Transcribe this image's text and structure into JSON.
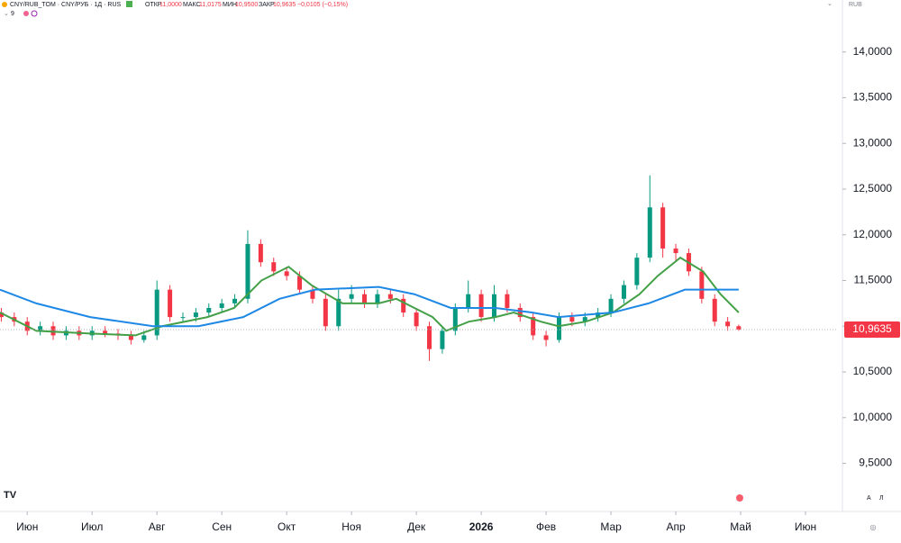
{
  "header": {
    "symbol": "CNY/RUB_TOM · CNY/РУБ · 1Д · RUS",
    "open_label": "ОТКР",
    "open": "11,0000",
    "high_label": "МАКС",
    "high": "11,0175",
    "low_label": "МИН",
    "low": "10,9500",
    "close_label": "ЗАКР",
    "close": "10,9635",
    "change": "−0,0105 (−0,15%)",
    "indicator": "9",
    "currency": "RUB"
  },
  "footer": {
    "auto": "А",
    "log": "Л"
  },
  "chart_data": {
    "type": "candlestick",
    "x": [
      -0.4,
      -0.2,
      0.0,
      0.2,
      0.4,
      0.6,
      0.8,
      1.0,
      1.2,
      1.4,
      1.6,
      1.8,
      2.0,
      2.2,
      2.4,
      2.6,
      2.8,
      3.0,
      3.2,
      3.4,
      3.6,
      3.8,
      4.0,
      4.2,
      4.4,
      4.6,
      4.8,
      5.0,
      5.2,
      5.4,
      5.6,
      5.8,
      6.0,
      6.2,
      6.4,
      6.6,
      6.8,
      7.0,
      7.2,
      7.4,
      7.6,
      7.8,
      8.0,
      8.2,
      8.4,
      8.6,
      8.8,
      9.0,
      9.2,
      9.4,
      9.6,
      9.8,
      10.0,
      10.2,
      10.4,
      10.6,
      10.8,
      10.97
    ],
    "open": [
      11.15,
      11.1,
      11.05,
      10.95,
      11.0,
      10.9,
      10.95,
      10.9,
      10.95,
      10.92,
      10.9,
      10.85,
      10.9,
      11.4,
      11.1,
      11.1,
      11.15,
      11.2,
      11.25,
      11.3,
      11.9,
      11.7,
      11.6,
      11.55,
      11.4,
      11.3,
      11.0,
      11.3,
      11.35,
      11.25,
      11.35,
      11.3,
      11.15,
      11.0,
      10.75,
      10.95,
      11.2,
      11.35,
      11.1,
      11.35,
      11.2,
      11.1,
      10.9,
      10.85,
      11.1,
      11.05,
      11.1,
      11.15,
      11.3,
      11.45,
      11.75,
      12.3,
      11.85,
      11.8,
      11.6,
      11.3,
      11.05,
      11.0
    ],
    "high": [
      11.2,
      11.15,
      11.1,
      11.05,
      11.05,
      11.0,
      11.0,
      11.0,
      11.0,
      10.97,
      10.95,
      10.95,
      11.5,
      11.45,
      11.15,
      11.2,
      11.25,
      11.3,
      11.35,
      12.05,
      11.95,
      11.75,
      11.65,
      11.6,
      11.45,
      11.35,
      11.4,
      11.45,
      11.4,
      11.4,
      11.4,
      11.35,
      11.2,
      11.05,
      11.0,
      11.25,
      11.5,
      11.4,
      11.45,
      11.4,
      11.25,
      11.15,
      10.95,
      11.15,
      11.15,
      11.15,
      11.2,
      11.35,
      11.5,
      11.8,
      12.65,
      12.35,
      11.9,
      11.85,
      11.65,
      11.35,
      11.1,
      11.0175
    ],
    "low": [
      11.05,
      11.0,
      10.9,
      10.9,
      10.85,
      10.85,
      10.85,
      10.85,
      10.88,
      10.85,
      10.8,
      10.82,
      10.85,
      11.05,
      11.05,
      11.05,
      11.1,
      11.15,
      11.2,
      11.25,
      11.65,
      11.55,
      11.5,
      11.35,
      11.25,
      10.95,
      10.95,
      11.25,
      11.2,
      11.2,
      11.25,
      11.1,
      10.95,
      10.62,
      10.7,
      10.9,
      11.15,
      11.05,
      11.05,
      11.15,
      11.05,
      10.85,
      10.78,
      10.82,
      11.0,
      11.0,
      11.05,
      11.1,
      11.25,
      11.4,
      11.7,
      11.75,
      11.7,
      11.55,
      11.25,
      11.0,
      10.95,
      10.95
    ],
    "close": [
      11.1,
      11.05,
      10.95,
      11.0,
      10.9,
      10.95,
      10.9,
      10.95,
      10.92,
      10.9,
      10.85,
      10.9,
      11.4,
      11.1,
      11.1,
      11.15,
      11.2,
      11.25,
      11.3,
      11.9,
      11.7,
      11.6,
      11.55,
      11.4,
      11.3,
      11.0,
      11.3,
      11.35,
      11.25,
      11.35,
      11.3,
      11.15,
      11.0,
      10.75,
      10.95,
      11.2,
      11.35,
      11.1,
      11.35,
      11.2,
      11.1,
      10.9,
      10.85,
      11.1,
      11.05,
      11.1,
      11.15,
      11.3,
      11.45,
      11.75,
      12.3,
      11.85,
      11.8,
      11.6,
      11.3,
      11.05,
      11.0,
      10.9635
    ],
    "up_color": "#089981",
    "down_color": "#f23645",
    "lines": [
      {
        "color": "#43a047",
        "x": [
          -0.42,
          0.14,
          0.97,
          1.67,
          2.08,
          2.78,
          3.19,
          3.61,
          4.03,
          4.38,
          4.86,
          5.42,
          5.69,
          5.97,
          6.25,
          6.46,
          6.81,
          7.22,
          7.5,
          7.92,
          8.19,
          8.61,
          9.03,
          9.44,
          9.72,
          10.07,
          10.42,
          10.69,
          10.97
        ],
        "values": [
          11.15,
          10.95,
          10.92,
          10.9,
          11.0,
          11.1,
          11.2,
          11.5,
          11.65,
          11.45,
          11.25,
          11.25,
          11.3,
          11.2,
          11.1,
          10.95,
          11.05,
          11.1,
          11.15,
          11.05,
          11.0,
          11.05,
          11.15,
          11.35,
          11.55,
          11.75,
          11.6,
          11.35,
          11.15
        ]
      },
      {
        "color": "#1e88e5",
        "x": [
          -0.42,
          0.14,
          0.97,
          1.94,
          2.64,
          3.33,
          3.89,
          4.44,
          5.42,
          5.97,
          6.53,
          7.22,
          7.78,
          8.19,
          9.03,
          9.58,
          10.14,
          10.97
        ],
        "values": [
          11.4,
          11.25,
          11.1,
          11.0,
          11.0,
          11.1,
          11.3,
          11.4,
          11.43,
          11.35,
          11.2,
          11.2,
          11.15,
          11.1,
          11.15,
          11.25,
          11.4,
          11.4
        ]
      }
    ],
    "xlim": [
      -0.42,
      12.5
    ],
    "xticks": [
      {
        "value": 0,
        "label": "Июн"
      },
      {
        "value": 1,
        "label": "Июл"
      },
      {
        "value": 2,
        "label": "Авг"
      },
      {
        "value": 3,
        "label": "Сен"
      },
      {
        "value": 4,
        "label": "Окт"
      },
      {
        "value": 5,
        "label": "Ноя"
      },
      {
        "value": 6,
        "label": "Дек"
      },
      {
        "value": 7,
        "label": "2026"
      },
      {
        "value": 8,
        "label": "Фев"
      },
      {
        "value": 9,
        "label": "Мар"
      },
      {
        "value": 10,
        "label": "Апр"
      },
      {
        "value": 11,
        "label": "Май"
      },
      {
        "value": 12,
        "label": "Июн"
      }
    ],
    "ylim": [
      9.2,
      14.47
    ],
    "yticks": [
      {
        "value": 9.5,
        "label": "9,5000"
      },
      {
        "value": 10,
        "label": "10,0000"
      },
      {
        "value": 10.5,
        "label": "10,5000"
      },
      {
        "value": 11,
        "label": "11,0000"
      },
      {
        "value": 11.5,
        "label": "11,5000"
      },
      {
        "value": 12,
        "label": "12,0000"
      },
      {
        "value": 12.5,
        "label": "12,5000"
      },
      {
        "value": 13,
        "label": "13,0000"
      },
      {
        "value": 13.5,
        "label": "13,5000"
      },
      {
        "value": 14,
        "label": "14,0000"
      }
    ],
    "last_price": {
      "value": 10.9635,
      "label": "10,9635",
      "color": "#f23645"
    }
  }
}
